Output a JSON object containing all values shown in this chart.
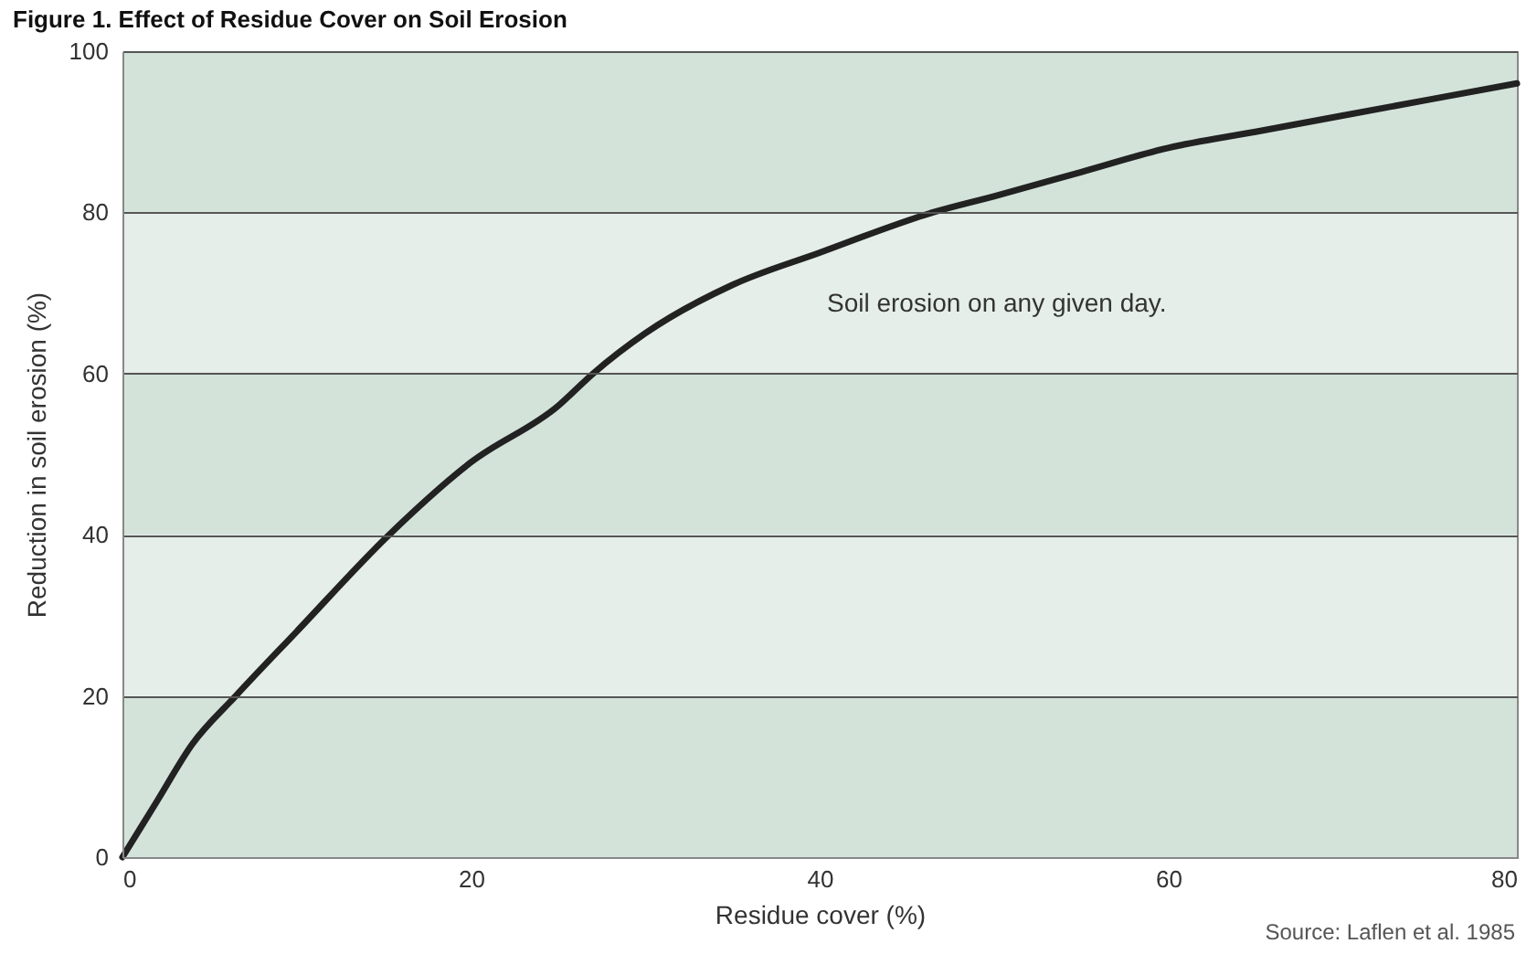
{
  "chart_data": {
    "type": "line",
    "title": "Figure 1. Effect of Residue Cover on Soil Erosion",
    "xlabel": "Residue cover (%)",
    "ylabel": "Reduction in soil erosion (%)",
    "x": [
      0,
      2,
      4,
      6.5,
      10,
      15.3,
      20,
      25,
      27,
      30,
      35,
      40,
      46.5,
      50,
      55,
      60,
      65,
      70,
      75,
      80
    ],
    "series": [
      {
        "name": "Soil erosion on any given day.",
        "color": "#222222",
        "values": [
          0,
          7,
          14,
          20,
          28,
          40,
          49,
          56,
          60,
          65,
          71,
          75,
          80,
          82,
          85,
          88,
          90,
          92,
          94,
          96
        ]
      }
    ],
    "xlim": [
      0,
      80
    ],
    "ylim": [
      0,
      100
    ],
    "xticks": [
      0,
      20,
      40,
      60,
      80
    ],
    "yticks": [
      0,
      20,
      40,
      60,
      80,
      100
    ],
    "grid": "y",
    "legend": false,
    "marker": "none",
    "line_style": "solid",
    "bands": [
      {
        "axis": "y",
        "from": 0,
        "to": 20,
        "color": "#d3e3da"
      },
      {
        "axis": "y",
        "from": 20,
        "to": 40,
        "color": "#e5eee9"
      },
      {
        "axis": "y",
        "from": 40,
        "to": 60,
        "color": "#d3e3da"
      },
      {
        "axis": "y",
        "from": 60,
        "to": 80,
        "color": "#e5eee9"
      },
      {
        "axis": "y",
        "from": 80,
        "to": 100,
        "color": "#d3e3da"
      }
    ],
    "annotations": [
      "Source: Laflen et al. 1985"
    ]
  }
}
